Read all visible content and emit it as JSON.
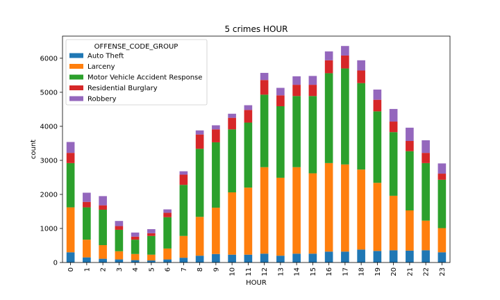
{
  "chart_data": {
    "type": "bar",
    "stacked": true,
    "title": "5 crimes HOUR",
    "xlabel": "HOUR",
    "ylabel": "count",
    "categories": [
      "0",
      "1",
      "2",
      "3",
      "4",
      "5",
      "6",
      "7",
      "8",
      "9",
      "10",
      "11",
      "12",
      "13",
      "14",
      "15",
      "16",
      "17",
      "18",
      "19",
      "20",
      "21",
      "22",
      "23"
    ],
    "ylim": [
      0,
      6650
    ],
    "yticks": [
      0,
      1000,
      2000,
      3000,
      4000,
      5000,
      6000
    ],
    "legend": {
      "title": "OFFENSE_CODE_GROUP",
      "placement": "top-left"
    },
    "series": [
      {
        "name": "Auto Theft",
        "color": "#1f77b4",
        "values": [
          300,
          150,
          110,
          90,
          70,
          60,
          90,
          140,
          200,
          250,
          230,
          230,
          260,
          200,
          260,
          260,
          320,
          320,
          380,
          340,
          360,
          350,
          360,
          300
        ]
      },
      {
        "name": "Larceny",
        "color": "#ff7f0e",
        "values": [
          1320,
          520,
          400,
          240,
          180,
          170,
          320,
          640,
          1140,
          1360,
          1830,
          1970,
          2540,
          2290,
          2540,
          2360,
          2600,
          2560,
          2350,
          2000,
          1600,
          1180,
          870,
          710
        ]
      },
      {
        "name": "Motor Vehicle Accident Response",
        "color": "#2ca02c",
        "values": [
          1300,
          950,
          1040,
          630,
          420,
          550,
          920,
          1500,
          2000,
          1920,
          1850,
          1910,
          2130,
          2100,
          2090,
          2270,
          2640,
          2820,
          2540,
          2100,
          1870,
          1740,
          1690,
          1420
        ]
      },
      {
        "name": "Residential Burglary",
        "color": "#d62728",
        "values": [
          300,
          160,
          130,
          110,
          90,
          80,
          130,
          300,
          420,
          380,
          340,
          370,
          430,
          320,
          330,
          330,
          380,
          380,
          370,
          340,
          310,
          300,
          300,
          180
        ]
      },
      {
        "name": "Robbery",
        "color": "#9467bd",
        "values": [
          320,
          270,
          270,
          150,
          120,
          120,
          100,
          100,
          120,
          120,
          120,
          140,
          210,
          220,
          250,
          260,
          260,
          280,
          300,
          300,
          370,
          390,
          370,
          300
        ]
      }
    ]
  }
}
